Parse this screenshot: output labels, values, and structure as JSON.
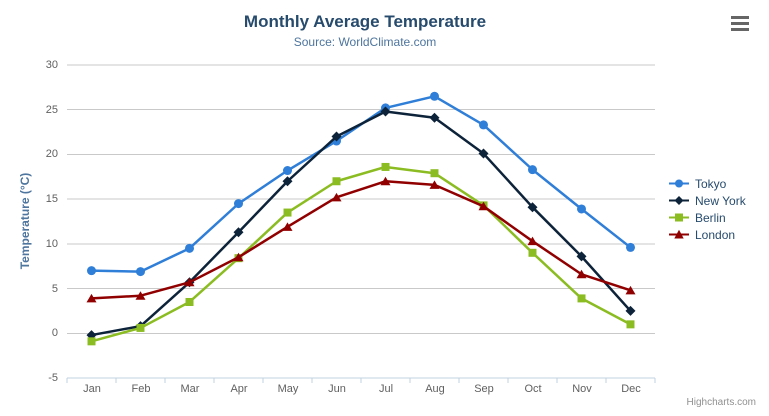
{
  "colors": {
    "background": "#ffffff",
    "title": "#274b6d",
    "subtitle": "#4d759e",
    "axis_title": "#4d759e",
    "tick_label": "#606060",
    "grid": "#c9c9c9",
    "axis_line": "#c0d0e0",
    "legend_text": "#274b6d",
    "credits": "#909090"
  },
  "export_menu": {
    "tooltip": "Chart context menu"
  },
  "credits_label": "Highcharts.com",
  "chart_data": {
    "type": "line",
    "title": "Monthly Average Temperature",
    "subtitle": "Source: WorldClimate.com",
    "xlabel": "",
    "ylabel": "Temperature (°C)",
    "categories": [
      "Jan",
      "Feb",
      "Mar",
      "Apr",
      "May",
      "Jun",
      "Jul",
      "Aug",
      "Sep",
      "Oct",
      "Nov",
      "Dec"
    ],
    "yticks": [
      -5,
      0,
      5,
      10,
      15,
      20,
      25,
      30
    ],
    "ylim": [
      -5,
      30
    ],
    "grid": "horizontal",
    "legend_position": "right",
    "series": [
      {
        "name": "Tokyo",
        "color": "#2f7ed8",
        "marker": "circle",
        "values": [
          7.0,
          6.9,
          9.5,
          14.5,
          18.2,
          21.5,
          25.2,
          26.5,
          23.3,
          18.3,
          13.9,
          9.6
        ]
      },
      {
        "name": "New York",
        "color": "#0d233a",
        "marker": "diamond",
        "values": [
          -0.2,
          0.8,
          5.7,
          11.3,
          17.0,
          22.0,
          24.8,
          24.1,
          20.1,
          14.1,
          8.6,
          2.5
        ]
      },
      {
        "name": "Berlin",
        "color": "#8bbc21",
        "marker": "square",
        "values": [
          -0.9,
          0.6,
          3.5,
          8.4,
          13.5,
          17.0,
          18.6,
          17.9,
          14.3,
          9.0,
          3.9,
          1.0
        ]
      },
      {
        "name": "London",
        "color": "#910000",
        "marker": "triangle",
        "values": [
          3.9,
          4.2,
          5.7,
          8.5,
          11.9,
          15.2,
          17.0,
          16.6,
          14.2,
          10.3,
          6.6,
          4.8
        ]
      }
    ],
    "credits": "Highcharts.com"
  }
}
